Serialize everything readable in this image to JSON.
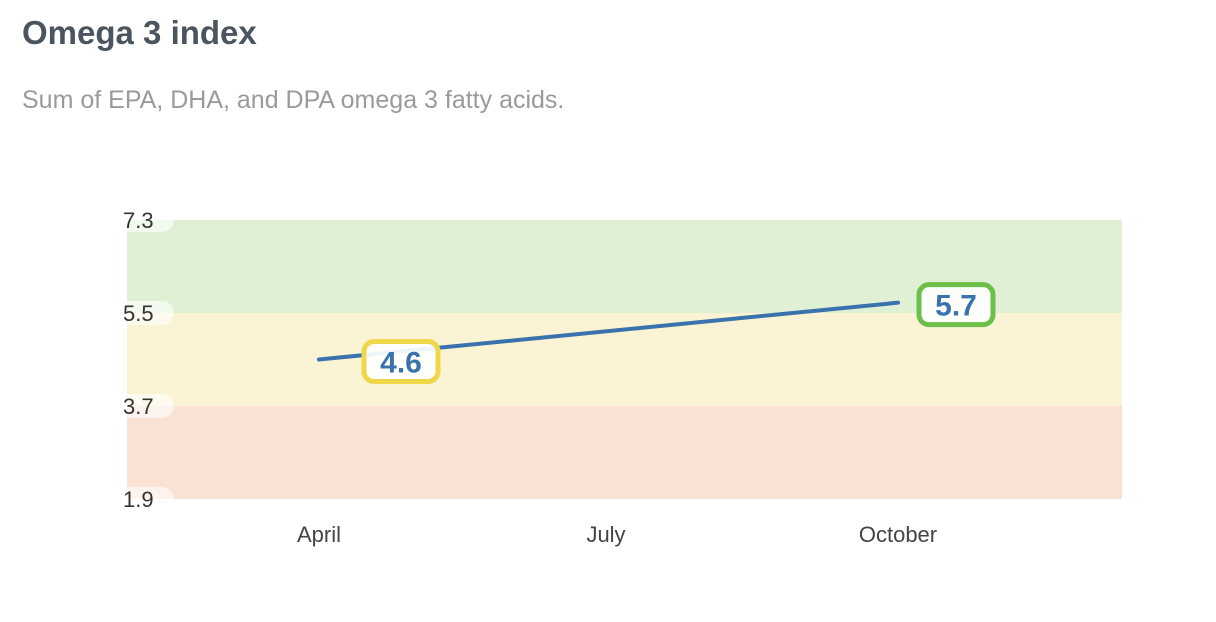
{
  "header": {
    "title": "Omega 3 index",
    "subtitle": "Sum of EPA, DHA, and DPA omega 3 fatty acids."
  },
  "colors": {
    "line": "#3a72ad",
    "band_low": "#f9e1d4",
    "band_mid": "#faf4d4",
    "band_high": "#dff0d5",
    "marker_yellow": "#f0d74a",
    "marker_green": "#6cc04a"
  },
  "chart_data": {
    "type": "line",
    "title": "Omega 3 index",
    "subtitle": "Sum of EPA, DHA, and DPA omega 3 fatty acids.",
    "categories": [
      "April",
      "July",
      "October"
    ],
    "ylim": [
      1.9,
      7.3
    ],
    "yticks": [
      "7.3",
      "5.5",
      "3.7",
      "1.9"
    ],
    "ytick_values": [
      7.3,
      5.5,
      3.7,
      1.9
    ],
    "bands": [
      {
        "from": 1.9,
        "to": 3.7,
        "color": "#f9e1d4"
      },
      {
        "from": 3.7,
        "to": 5.5,
        "color": "#faf4d4"
      },
      {
        "from": 5.5,
        "to": 7.3,
        "color": "#dff0d5"
      }
    ],
    "series": [
      {
        "points": [
          {
            "x": "April",
            "y": 4.6,
            "label": "4.6",
            "border": "#f0d74a"
          },
          {
            "x": "October",
            "y": 5.7,
            "label": "5.7",
            "border": "#6cc04a"
          }
        ]
      }
    ],
    "grid": false,
    "legend": "none"
  }
}
